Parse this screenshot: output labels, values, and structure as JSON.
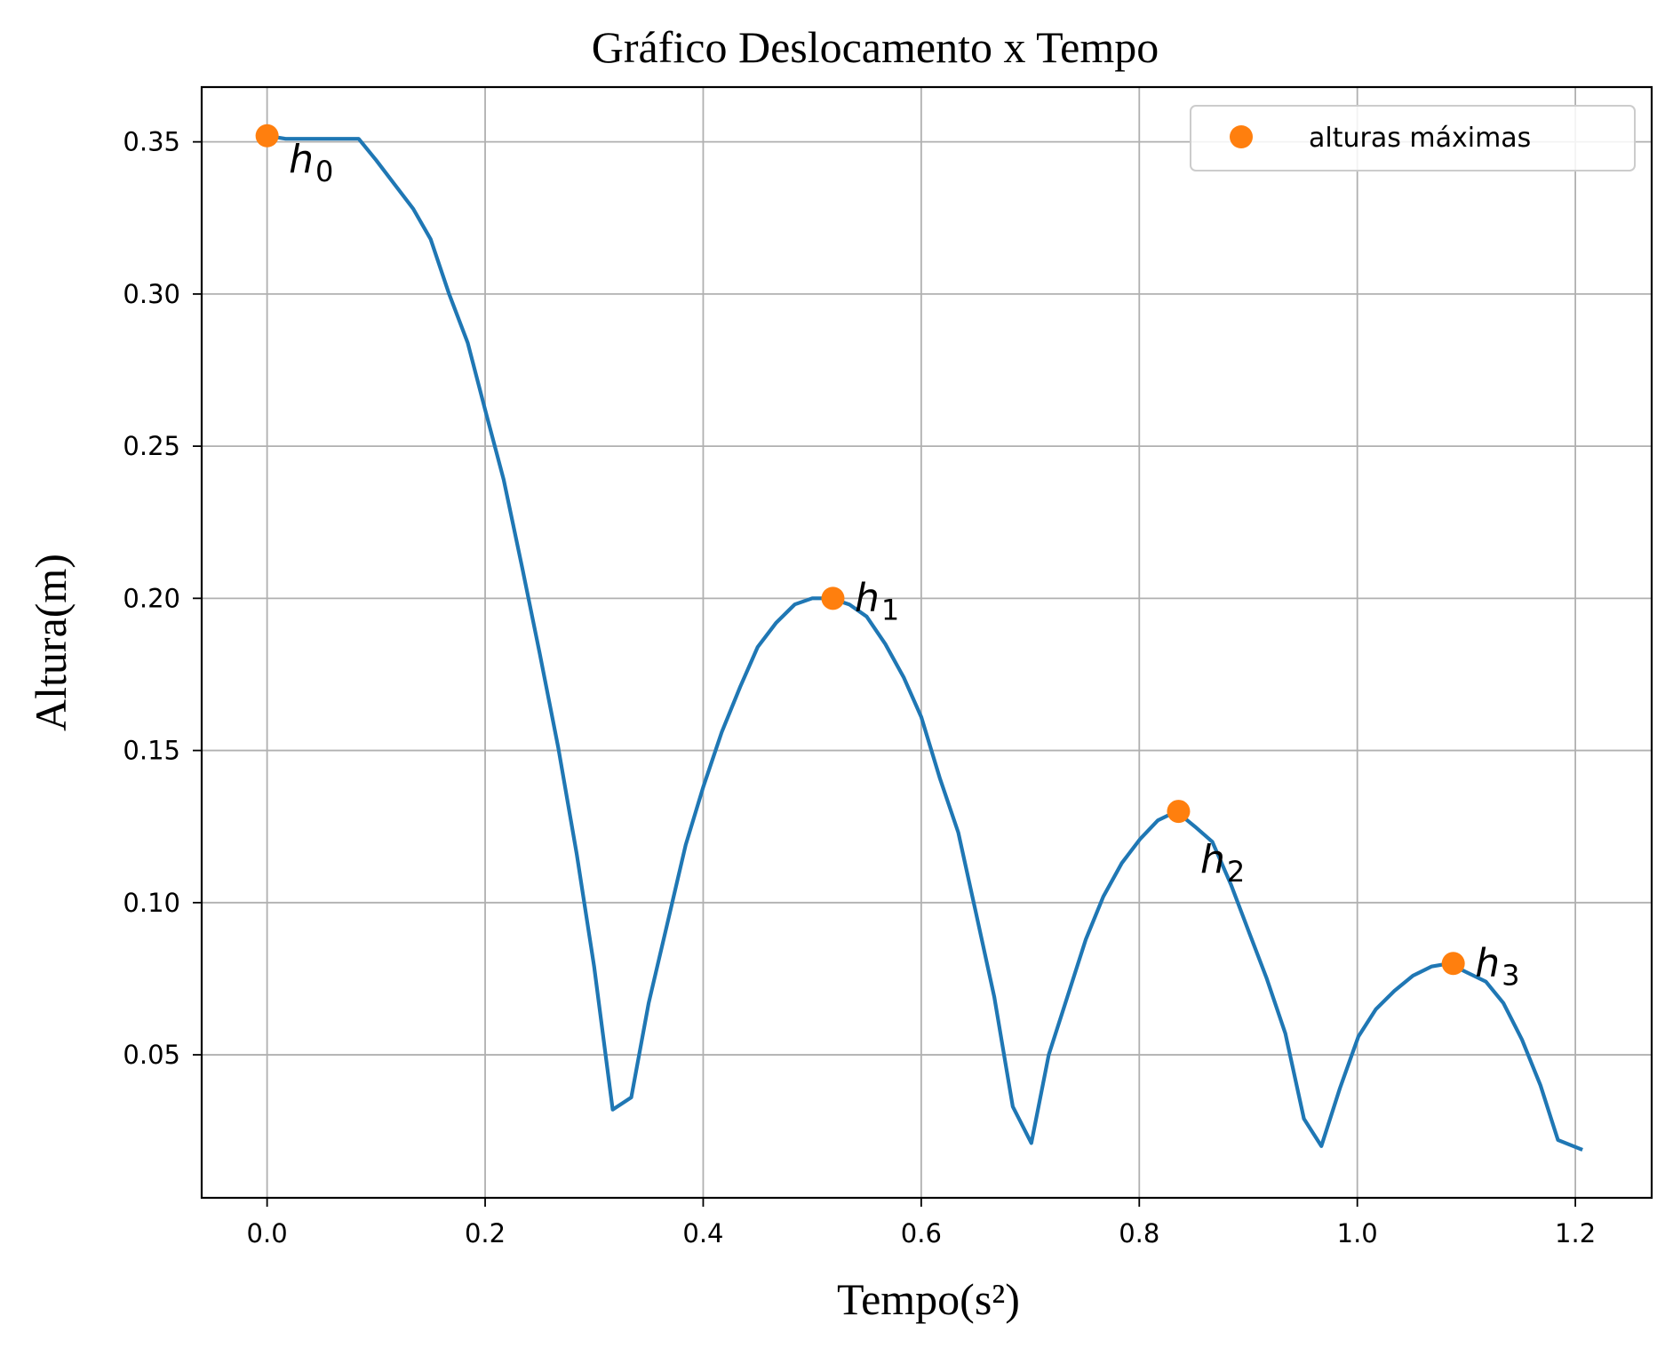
{
  "chart_data": {
    "type": "line",
    "title": "Gráfico Deslocamento x Tempo",
    "xlabel": "Tempo(s²)",
    "ylabel": "Altura(m)",
    "xlim": [
      -0.06,
      1.27
    ],
    "ylim": [
      0.003,
      0.368
    ],
    "xticks": [
      0.0,
      0.2,
      0.4,
      0.6,
      0.8,
      1.0,
      1.2
    ],
    "xtick_labels": [
      "0.0",
      "0.2",
      "0.4",
      "0.6",
      "0.8",
      "1.0",
      "1.2"
    ],
    "yticks": [
      0.05,
      0.1,
      0.15,
      0.2,
      0.25,
      0.3,
      0.35
    ],
    "ytick_labels": [
      "0.05",
      "0.10",
      "0.15",
      "0.20",
      "0.25",
      "0.30",
      "0.35"
    ],
    "grid": true,
    "legend_position": "top-right",
    "colors": {
      "line": "#1f77b4",
      "markers": "#ff7f0e"
    },
    "series": [
      {
        "x": [
          0.0,
          0.017,
          0.033,
          0.05,
          0.067,
          0.084,
          0.1,
          0.117,
          0.134,
          0.15,
          0.167,
          0.184,
          0.2,
          0.217,
          0.234,
          0.25,
          0.267,
          0.284,
          0.3,
          0.317,
          0.334,
          0.35,
          0.367,
          0.384,
          0.4,
          0.417,
          0.434,
          0.45,
          0.467,
          0.484,
          0.5,
          0.517,
          0.534,
          0.55,
          0.567,
          0.584,
          0.6,
          0.617,
          0.634,
          0.65,
          0.667,
          0.684,
          0.701,
          0.717,
          0.734,
          0.751,
          0.767,
          0.784,
          0.801,
          0.817,
          0.834,
          0.851,
          0.867,
          0.884,
          0.901,
          0.917,
          0.934,
          0.951,
          0.967,
          0.984,
          1.001,
          1.017,
          1.034,
          1.051,
          1.068,
          1.084,
          1.101,
          1.118,
          1.134,
          1.151,
          1.168,
          1.184,
          1.205
        ],
        "y": [
          0.352,
          0.351,
          0.351,
          0.351,
          0.351,
          0.351,
          0.344,
          0.336,
          0.328,
          0.318,
          0.3,
          0.284,
          0.262,
          0.239,
          0.21,
          0.182,
          0.151,
          0.116,
          0.079,
          0.032,
          0.036,
          0.067,
          0.093,
          0.119,
          0.138,
          0.156,
          0.171,
          0.184,
          0.192,
          0.198,
          0.2,
          0.2,
          0.198,
          0.194,
          0.185,
          0.174,
          0.161,
          0.141,
          0.123,
          0.097,
          0.069,
          0.033,
          0.021,
          0.05,
          0.069,
          0.088,
          0.102,
          0.113,
          0.121,
          0.127,
          0.13,
          0.125,
          0.12,
          0.106,
          0.09,
          0.075,
          0.057,
          0.029,
          0.02,
          0.039,
          0.056,
          0.065,
          0.071,
          0.076,
          0.079,
          0.08,
          0.077,
          0.074,
          0.067,
          0.055,
          0.04,
          0.022,
          0.019
        ]
      },
      {
        "name": "alturas máximas",
        "type": "scatter",
        "x": [
          0.0,
          0.519,
          0.836,
          1.088
        ],
        "y": [
          0.352,
          0.2,
          0.13,
          0.08
        ]
      }
    ],
    "annotations": [
      {
        "base": "h",
        "sub": "0",
        "x": 0.02,
        "y": 0.344
      },
      {
        "base": "h",
        "sub": "1",
        "x": 0.539,
        "y": 0.2
      },
      {
        "base": "h",
        "sub": "2",
        "x": 0.856,
        "y": 0.114
      },
      {
        "base": "h",
        "sub": "3",
        "x": 1.108,
        "y": 0.08
      }
    ]
  }
}
